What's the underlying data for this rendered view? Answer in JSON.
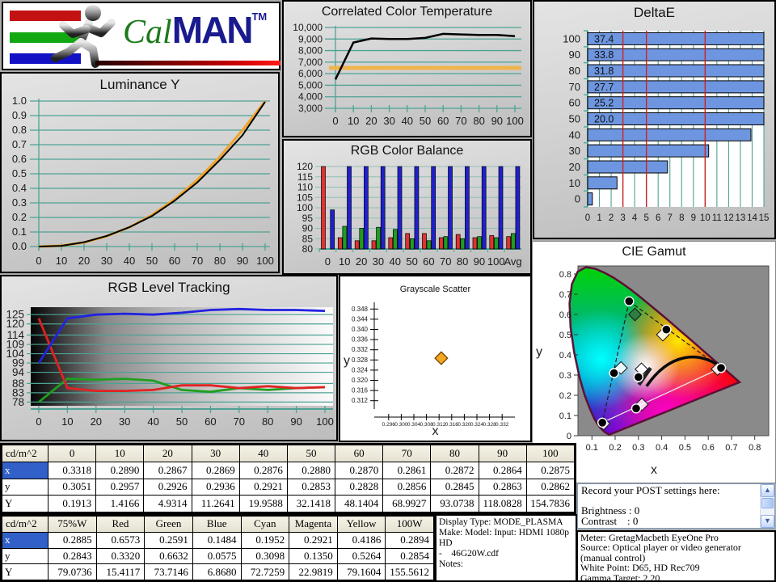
{
  "page": {
    "background": "#ababab",
    "grid_color": "#4da294",
    "reference_orange": "#f0b44c",
    "table_header_bg": "#ece9d8",
    "selected_cell_bg": "#3161c8"
  },
  "logo": {
    "brand_cal": "Cal",
    "brand_man": "MAN",
    "tm": "TM"
  },
  "chart_data": [
    {
      "id": "luminance_y",
      "type": "line",
      "title": "Luminance Y",
      "xticks": [
        0,
        10,
        20,
        30,
        40,
        50,
        60,
        70,
        80,
        90,
        100
      ],
      "yticks": [
        "0.0",
        "0.1",
        "0.2",
        "0.3",
        "0.4",
        "0.5",
        "0.6",
        "0.7",
        "0.8",
        "0.9",
        "1.0"
      ],
      "xlim": [
        0,
        100
      ],
      "ylim": [
        0,
        1
      ],
      "grid": true,
      "legend": "none",
      "series": [
        {
          "name": "target-gamma",
          "color": "#f0a428",
          "values": [
            0,
            0.006,
            0.028,
            0.071,
            0.132,
            0.217,
            0.325,
            0.458,
            0.617,
            0.8,
            1.0
          ]
        },
        {
          "name": "measured-luminance",
          "color": "#000000",
          "values": [
            0,
            0.005,
            0.03,
            0.073,
            0.133,
            0.21,
            0.315,
            0.44,
            0.595,
            0.765,
            0.995
          ]
        }
      ]
    },
    {
      "id": "cct",
      "type": "line",
      "title": "Correlated Color Temperature",
      "xticks": [
        0,
        10,
        20,
        30,
        40,
        50,
        60,
        70,
        80,
        90,
        100
      ],
      "yticks": [
        3000,
        4000,
        5000,
        6000,
        7000,
        8000,
        9000,
        10000
      ],
      "ytick_labels": [
        "3,000",
        "4,000",
        "5,000",
        "6,000",
        "7,000",
        "8,000",
        "9,000",
        "10,000"
      ],
      "ylim": [
        3000,
        10000
      ],
      "reference_line": {
        "value": 6500,
        "color": "#f0b44c"
      },
      "series": [
        {
          "name": "measured-cct",
          "color": "#000000",
          "values": [
            5500,
            8700,
            9050,
            9000,
            9000,
            9100,
            9450,
            9400,
            9350,
            9350,
            9250
          ]
        }
      ]
    },
    {
      "id": "rgb_color_balance",
      "type": "bar",
      "title": "RGB Color Balance",
      "categories": [
        "0",
        "10",
        "20",
        "30",
        "40",
        "50",
        "60",
        "70",
        "80",
        "90",
        "100",
        "Avg"
      ],
      "yticks": [
        80,
        85,
        90,
        95,
        100,
        105,
        110,
        115,
        120
      ],
      "ylim": [
        80,
        120
      ],
      "series": [
        {
          "name": "red",
          "color": "#e03232",
          "values": [
            120,
            85.5,
            84,
            84,
            85.5,
            87.5,
            87.5,
            85.5,
            87,
            85.5,
            86.5,
            86
          ]
        },
        {
          "name": "green",
          "color": "#1f9e1f",
          "values": [
            80,
            91,
            90,
            90.5,
            89.5,
            85,
            84,
            86,
            85,
            86,
            85.5,
            87.5
          ]
        },
        {
          "name": "blue",
          "color": "#2020cc",
          "values": [
            99,
            120,
            120,
            120,
            120,
            120,
            120,
            120,
            120,
            120,
            120,
            120
          ]
        }
      ]
    },
    {
      "id": "delta_e",
      "type": "bar",
      "orientation": "horizontal",
      "title": "DeltaE",
      "categories": [
        "0",
        "10",
        "20",
        "30",
        "40",
        "50",
        "60",
        "70",
        "80",
        "90",
        "100"
      ],
      "values": [
        0.4,
        2.5,
        6.8,
        10.3,
        13.9,
        20.0,
        25.2,
        27.7,
        31.8,
        33.8,
        37.4
      ],
      "bar_labels": [
        "",
        "",
        "",
        "",
        "",
        "20.0",
        "25.2",
        "27.7",
        "31.8",
        "33.8",
        "37.4"
      ],
      "xlim": [
        0,
        15
      ],
      "xticks": [
        0,
        1,
        2,
        3,
        4,
        5,
        6,
        7,
        8,
        9,
        10,
        11,
        12,
        13,
        14,
        15
      ],
      "reference_lines": [
        3,
        5,
        10
      ],
      "bar_color": "#6e96e0"
    },
    {
      "id": "rgb_level_tracking",
      "type": "line",
      "title": "RGB Level Tracking",
      "xticks": [
        0,
        10,
        20,
        30,
        40,
        50,
        60,
        70,
        80,
        90,
        100
      ],
      "ytick_values": [
        125,
        120,
        114,
        109,
        104,
        99,
        94,
        88,
        83,
        78
      ],
      "ylim": [
        76,
        129
      ],
      "series": [
        {
          "name": "green",
          "color": "#1f9e1f",
          "values": [
            78,
            90.5,
            90,
            90.5,
            89.5,
            84.5,
            83.5,
            85.5,
            84.5,
            85.5,
            86
          ]
        },
        {
          "name": "red",
          "color": "#e02222",
          "values": [
            123,
            85.5,
            84,
            84,
            84.5,
            87,
            87,
            85.5,
            86.5,
            85.5,
            86
          ]
        },
        {
          "name": "blue",
          "color": "#2222e0",
          "values": [
            99,
            123,
            125,
            125.5,
            125,
            126,
            127.5,
            128,
            127.5,
            127.5,
            127
          ]
        }
      ]
    },
    {
      "id": "grayscale_scatter",
      "type": "scatter",
      "title": "Grayscale Scatter",
      "xlabel": "x",
      "ylabel": "y",
      "xticks": [
        "0.296",
        "0.300",
        "0.304",
        "0.308",
        "0.312",
        "0.316",
        "0.320",
        "0.324",
        "0.328",
        "0.332"
      ],
      "yticks": [
        "0.312",
        "0.316",
        "0.320",
        "0.324",
        "0.328",
        "0.332",
        "0.336",
        "0.340",
        "0.344",
        "0.348"
      ],
      "points": [
        {
          "name": "white-point",
          "x": 0.3127,
          "y": 0.3287,
          "color": "#f5a623",
          "marker": "diamond"
        }
      ]
    },
    {
      "id": "cie_gamut",
      "type": "scatter",
      "title": "CIE Gamut",
      "xlabel": "x",
      "ylabel": "y",
      "xticks": [
        0.1,
        0.2,
        0.3,
        0.4,
        0.5,
        0.6,
        0.7,
        0.8
      ],
      "yticks": [
        0,
        0.1,
        0.2,
        0.3,
        0.4,
        0.5,
        0.6,
        0.7,
        0.8
      ],
      "measured_points": [
        {
          "name": "red",
          "x": 0.655,
          "y": 0.335
        },
        {
          "name": "green",
          "x": 0.26,
          "y": 0.665
        },
        {
          "name": "blue",
          "x": 0.145,
          "y": 0.065
        },
        {
          "name": "yellow",
          "x": 0.42,
          "y": 0.525
        },
        {
          "name": "cyan",
          "x": 0.195,
          "y": 0.31
        },
        {
          "name": "magenta",
          "x": 0.29,
          "y": 0.135
        },
        {
          "name": "white",
          "x": 0.3,
          "y": 0.29
        }
      ],
      "reference_points": [
        {
          "name": "red-ref",
          "x": 0.64,
          "y": 0.33
        },
        {
          "name": "green-ref",
          "x": 0.285,
          "y": 0.6,
          "fill": "#2f7d40"
        },
        {
          "name": "blue-ref",
          "x": 0.15,
          "y": 0.06
        },
        {
          "name": "yellow-ref",
          "x": 0.405,
          "y": 0.5
        },
        {
          "name": "cyan-ref",
          "x": 0.225,
          "y": 0.335
        },
        {
          "name": "magenta-ref",
          "x": 0.315,
          "y": 0.155
        },
        {
          "name": "white-ref",
          "x": 0.313,
          "y": 0.329
        }
      ]
    }
  ],
  "tables": {
    "grayscale": {
      "header": [
        "cd/m^2",
        "0",
        "10",
        "20",
        "30",
        "40",
        "50",
        "60",
        "70",
        "80",
        "90",
        "100"
      ],
      "rows": [
        {
          "label": "x",
          "selected": true,
          "values": [
            "0.3318",
            "0.2890",
            "0.2867",
            "0.2869",
            "0.2876",
            "0.2880",
            "0.2870",
            "0.2861",
            "0.2872",
            "0.2864",
            "0.2875"
          ]
        },
        {
          "label": "y",
          "values": [
            "0.3051",
            "0.2957",
            "0.2926",
            "0.2936",
            "0.2921",
            "0.2853",
            "0.2828",
            "0.2856",
            "0.2845",
            "0.2863",
            "0.2862"
          ]
        },
        {
          "label": "Y",
          "values": [
            "0.1913",
            "1.4166",
            "4.9314",
            "11.2641",
            "19.9588",
            "32.1418",
            "48.1404",
            "68.9927",
            "93.0738",
            "118.0828",
            "154.7836"
          ]
        }
      ]
    },
    "colors": {
      "header": [
        "cd/m^2",
        "75%W",
        "Red",
        "Green",
        "Blue",
        "Cyan",
        "Magenta",
        "Yellow",
        "100W"
      ],
      "rows": [
        {
          "label": "x",
          "selected": true,
          "values": [
            "0.2885",
            "0.6573",
            "0.2591",
            "0.1484",
            "0.1952",
            "0.2921",
            "0.4186",
            "0.2894"
          ]
        },
        {
          "label": "y",
          "values": [
            "0.2843",
            "0.3320",
            "0.6632",
            "0.0575",
            "0.3098",
            "0.1350",
            "0.5264",
            "0.2854"
          ]
        },
        {
          "label": "Y",
          "values": [
            "79.0736",
            "15.4117",
            "73.7146",
            "6.8680",
            "72.7259",
            "22.9819",
            "79.1604",
            "155.5612"
          ]
        }
      ]
    }
  },
  "info_panels": {
    "display": {
      "lines": [
        "Display Type: MODE_PLASMA",
        "Make: Model: Input: HDMI 1080p HD",
        "-    46G20W.cdf",
        "Notes:"
      ]
    },
    "post_settings": {
      "lines": [
        "Record your POST settings here:",
        "",
        "Brightness : 0",
        "Contrast    : 0"
      ]
    },
    "meter": {
      "lines": [
        "Meter: GretagMacbeth EyeOne Pro",
        "Source: Optical player or video generator (manual control)",
        "White Point: D65, HD Rec709",
        "Gamma Target: 2.20"
      ]
    }
  }
}
